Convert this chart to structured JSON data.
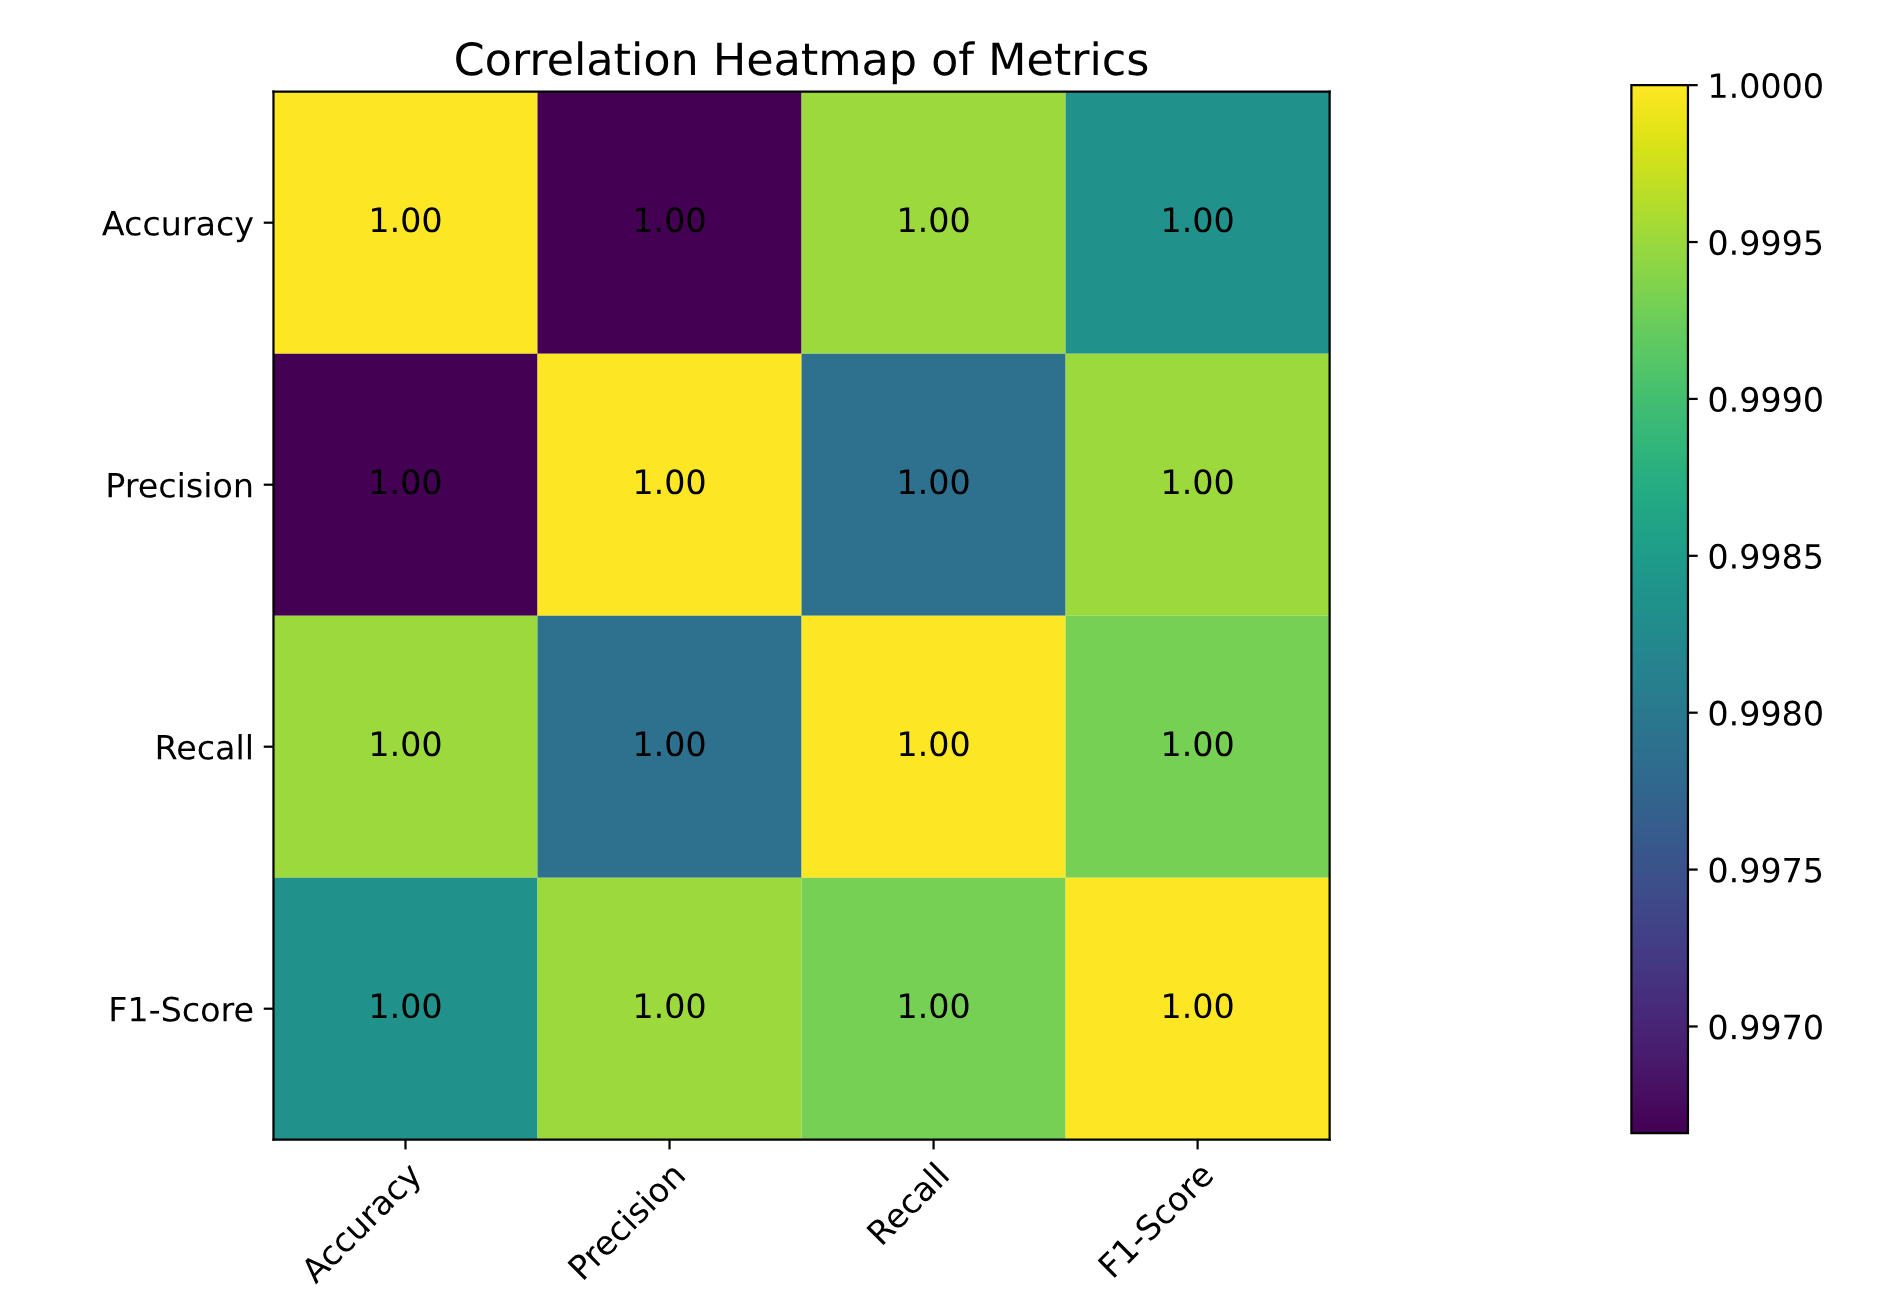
{
  "chart_data": {
    "type": "heatmap",
    "title": "Correlation Heatmap of Metrics",
    "categories": [
      "Accuracy",
      "Precision",
      "Recall",
      "F1-Score"
    ],
    "y_categories": [
      "Accuracy",
      "Precision",
      "Recall",
      "F1-Score"
    ],
    "cells": [
      [
        1.0,
        0.99666,
        0.9995,
        0.99833
      ],
      [
        0.99666,
        1.0,
        0.99789,
        0.9995
      ],
      [
        0.9995,
        0.99789,
        1.0,
        0.9993
      ],
      [
        0.99833,
        0.9995,
        0.9993,
        1.0
      ]
    ],
    "cell_labels": [
      [
        "1.00",
        "1.00",
        "1.00",
        "1.00"
      ],
      [
        "1.00",
        "1.00",
        "1.00",
        "1.00"
      ],
      [
        "1.00",
        "1.00",
        "1.00",
        "1.00"
      ],
      [
        "1.00",
        "1.00",
        "1.00",
        "1.00"
      ]
    ],
    "clim": [
      0.99666,
      1.0
    ],
    "cticks": [
      {
        "value": 0.997,
        "label": "0.9970"
      },
      {
        "value": 0.9975,
        "label": "0.9975"
      },
      {
        "value": 0.998,
        "label": "0.9980"
      },
      {
        "value": 0.9985,
        "label": "0.9985"
      },
      {
        "value": 0.999,
        "label": "0.9990"
      },
      {
        "value": 0.9995,
        "label": "0.9995"
      },
      {
        "value": 1.0,
        "label": "1.0000"
      }
    ]
  }
}
